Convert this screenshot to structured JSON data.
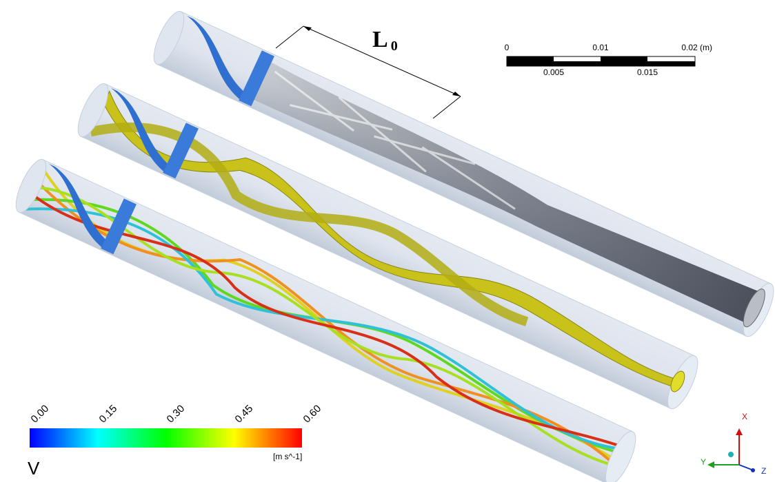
{
  "annotation": {
    "label": "L",
    "subscript": "0"
  },
  "scale_bar": {
    "top_labels": [
      "0",
      "0.01",
      "0.02"
    ],
    "unit": "(m)",
    "bottom_labels": [
      "0.005",
      "0.015"
    ]
  },
  "legend": {
    "ticks": [
      "0.00",
      "0.15",
      "0.30",
      "0.45",
      "0.60"
    ],
    "variable": "V",
    "unit": "[m s^-1]"
  },
  "axes_triad": {
    "x": "X",
    "y": "Y",
    "z": "Z"
  }
}
